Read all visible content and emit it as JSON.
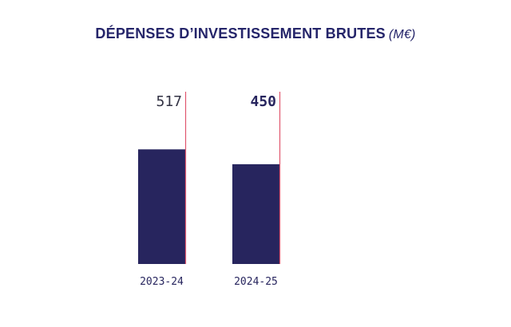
{
  "title": {
    "main": "DÉPENSES D’INVESTISSEMENT BRUTES",
    "unit": "(M€)"
  },
  "colors": {
    "bar": "#27255e",
    "marker_line": "#e0566e",
    "title": "#25256a",
    "value_text": "#333344",
    "tick_text": "#27255e"
  },
  "chart_data": {
    "type": "bar",
    "title": "DÉPENSES D’INVESTISSEMENT BRUTES (M€)",
    "categories": [
      "2023-24",
      "2024-25"
    ],
    "values": [
      517,
      450
    ],
    "value_labels": [
      "517",
      "450"
    ],
    "highlight_index": 1,
    "ylim": [
      0,
      1000
    ],
    "grid": false,
    "legend": "none",
    "xlabel": "",
    "ylabel": ""
  }
}
